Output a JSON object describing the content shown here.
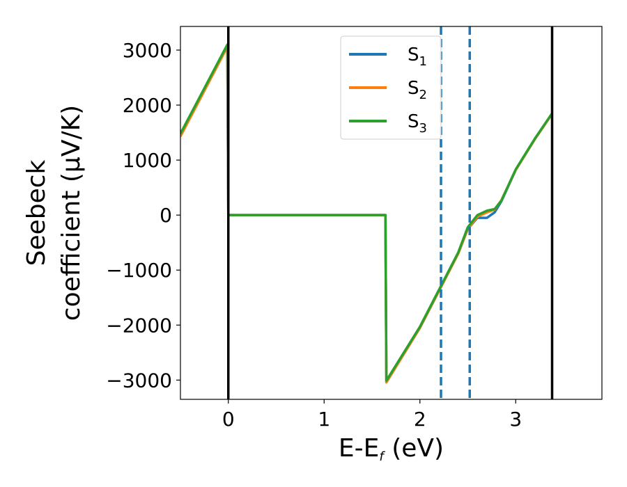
{
  "chart_data": {
    "type": "line",
    "xlabel": {
      "main": "E-E",
      "sub": "f",
      "unit": " (eV)"
    },
    "ylabel": {
      "line1": "Seebeck",
      "line2": "coefficient  (μV/K)"
    },
    "xlim": [
      -0.5,
      3.9
    ],
    "ylim": [
      -3350,
      3430
    ],
    "xticks": [
      0,
      1,
      2,
      3
    ],
    "yticks": [
      3000,
      2000,
      1000,
      0,
      -1000,
      -2000,
      -3000
    ],
    "ytick_labels": [
      "3000",
      "2000",
      "1000",
      "0",
      "−1000",
      "−2000",
      "−3000"
    ],
    "grid": false,
    "legend": {
      "placement": "top-center",
      "entries": [
        {
          "main": "S",
          "sub": "1"
        },
        {
          "main": "S",
          "sub": "2"
        },
        {
          "main": "S",
          "sub": "3"
        }
      ]
    },
    "series": [
      {
        "color": "#1f77b4",
        "x": [
          -0.5,
          -0.01,
          0.0,
          1.64,
          1.65,
          2.0,
          2.4,
          2.5,
          2.6,
          2.7,
          2.78,
          2.85,
          3.0,
          3.2,
          3.38
        ],
        "y": [
          1450,
          3080,
          0,
          0,
          -3040,
          -2050,
          -700,
          -250,
          -50,
          -50,
          50,
          250,
          820,
          1380,
          1840
        ]
      },
      {
        "color": "#ff7f0e",
        "x": [
          -0.5,
          -0.01,
          0.0,
          1.64,
          1.65,
          2.0,
          2.4,
          2.5,
          2.6,
          2.7,
          2.78,
          2.85,
          3.0,
          3.2,
          3.38
        ],
        "y": [
          1430,
          3060,
          0,
          0,
          -3040,
          -2050,
          -700,
          -250,
          -30,
          50,
          100,
          270,
          820,
          1380,
          1840
        ]
      },
      {
        "color": "#2ca02c",
        "x": [
          -0.5,
          -0.01,
          0.0,
          1.64,
          1.65,
          2.0,
          2.4,
          2.5,
          2.6,
          2.7,
          2.78,
          2.85,
          3.0,
          3.2,
          3.38
        ],
        "y": [
          1480,
          3100,
          0,
          0,
          -3010,
          -2030,
          -680,
          -220,
          0,
          80,
          110,
          260,
          830,
          1390,
          1850
        ]
      }
    ],
    "vlines_solid": [
      0.0,
      3.38
    ],
    "vlines_dashed": [
      2.22,
      2.52
    ],
    "vline_colors": {
      "solid": "#000000",
      "dashed": "#1f77b4"
    }
  }
}
